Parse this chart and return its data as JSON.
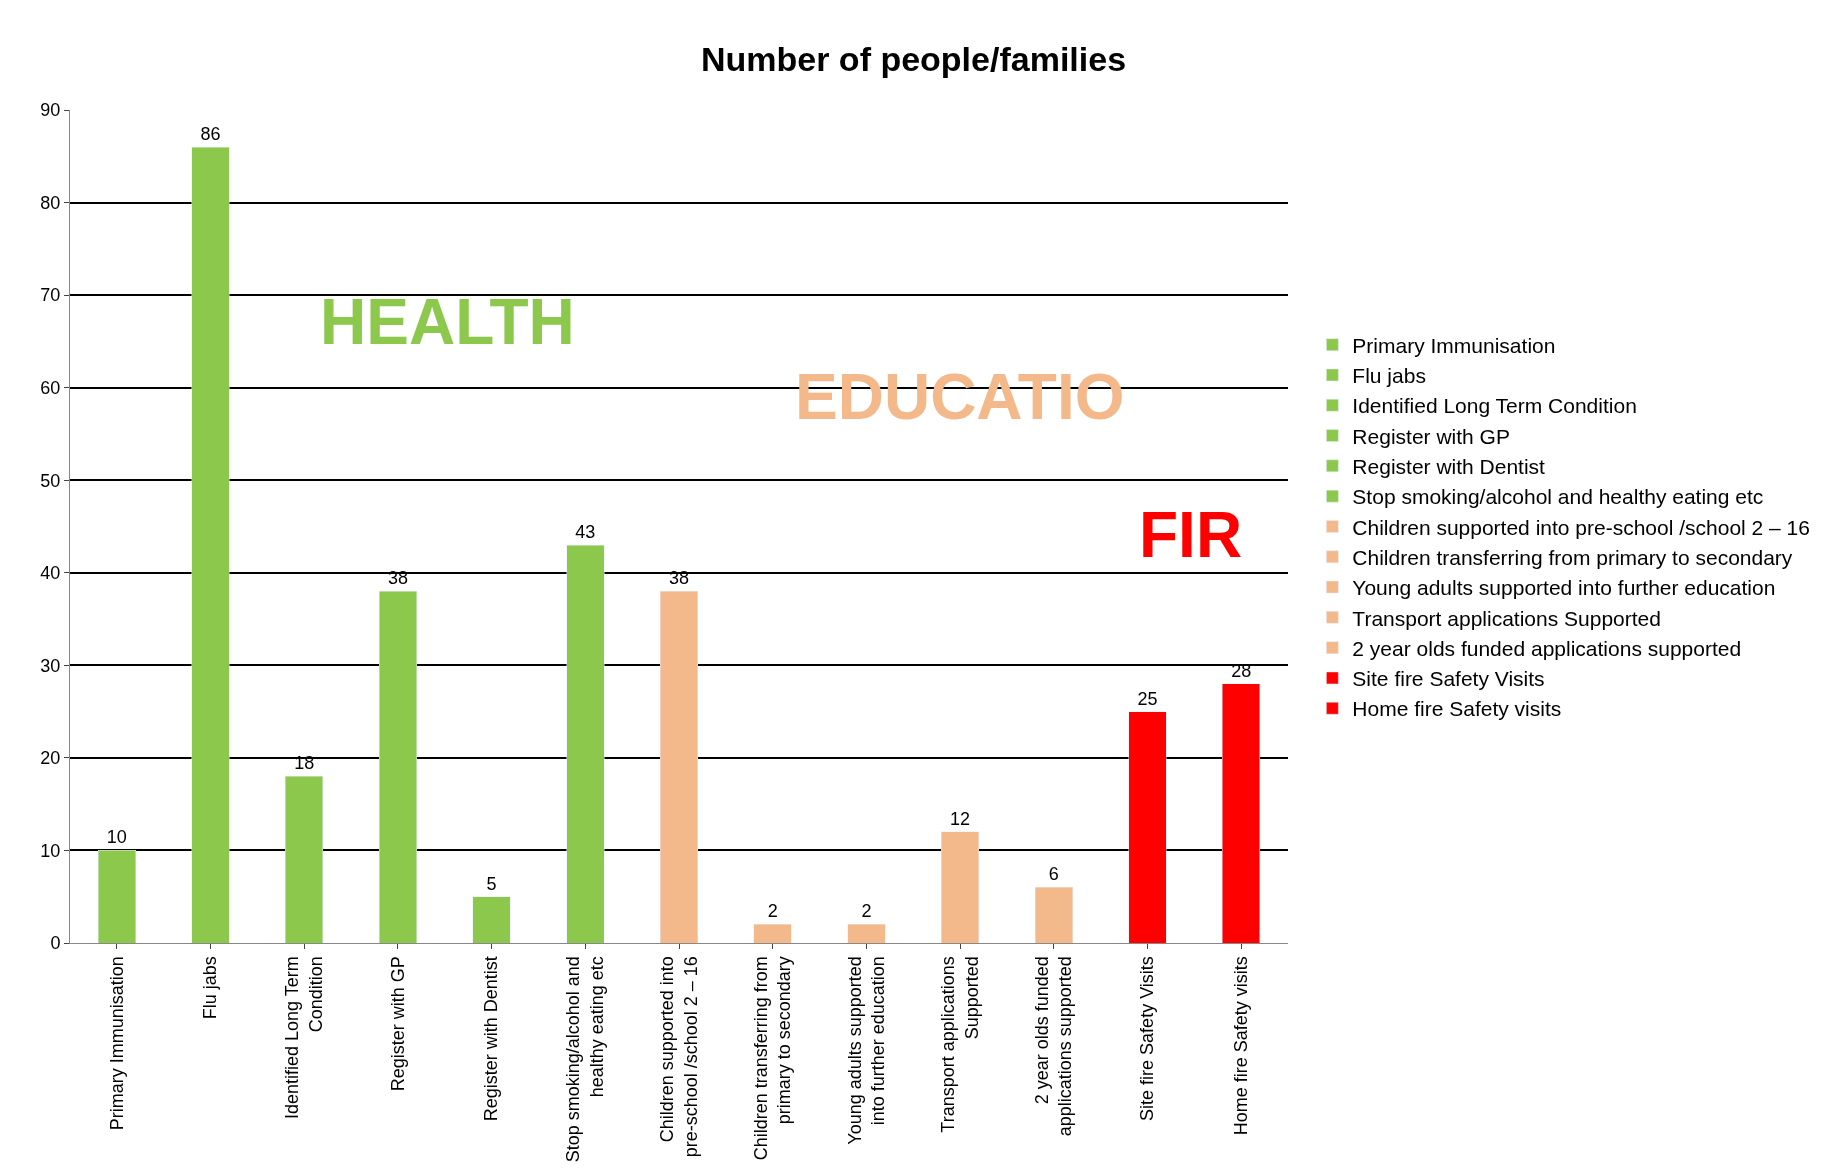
{
  "chart_data": {
    "type": "bar",
    "title": "Number of people/families",
    "stacked": true,
    "categories": [
      "Primary Immunisation",
      "Flu jabs",
      "Identified Long Term Condition",
      "Register with GP",
      "Register with Dentist",
      "Stop smoking/alcohol and healthy eating etc",
      "Children supported into pre-school /school 2 – 16",
      "Children transferring from primary to secondary",
      "Young adults supported into further education",
      "Transport applications Supported",
      "2 year olds funded applications supported",
      "Site fire Safety Visits",
      "Home fire Safety visits"
    ],
    "series": [
      {
        "name": "Primary Immunisation",
        "color": "#8cc84b",
        "values": [
          10,
          null,
          null,
          null,
          null,
          null,
          null,
          null,
          null,
          null,
          null,
          null,
          null
        ]
      },
      {
        "name": "Flu jabs",
        "color": "#8cc84b",
        "values": [
          null,
          86,
          null,
          null,
          null,
          null,
          null,
          null,
          null,
          null,
          null,
          null,
          null
        ]
      },
      {
        "name": "Identified Long Term Condition",
        "color": "#8cc84b",
        "values": [
          null,
          null,
          18,
          null,
          null,
          null,
          null,
          null,
          null,
          null,
          null,
          null,
          null
        ]
      },
      {
        "name": "Register with GP",
        "color": "#8cc84b",
        "values": [
          null,
          null,
          null,
          38,
          null,
          null,
          null,
          null,
          null,
          null,
          null,
          null,
          null
        ]
      },
      {
        "name": "Register with Dentist",
        "color": "#8cc84b",
        "values": [
          null,
          null,
          null,
          null,
          5,
          null,
          null,
          null,
          null,
          null,
          null,
          null,
          null
        ]
      },
      {
        "name": "Stop smoking/alcohol and healthy eating etc",
        "color": "#8cc84b",
        "values": [
          null,
          null,
          null,
          null,
          null,
          43,
          null,
          null,
          null,
          null,
          null,
          null,
          null
        ]
      },
      {
        "name": "Children supported into pre-school /school 2 – 16",
        "color": "#f4b98a",
        "values": [
          null,
          null,
          null,
          null,
          null,
          null,
          38,
          null,
          null,
          null,
          null,
          null,
          null
        ]
      },
      {
        "name": "Children transferring from primary to secondary",
        "color": "#f4b98a",
        "values": [
          null,
          null,
          null,
          null,
          null,
          null,
          null,
          2,
          null,
          null,
          null,
          null,
          null
        ]
      },
      {
        "name": "Young adults supported into further education",
        "color": "#f4b98a",
        "values": [
          null,
          null,
          null,
          null,
          null,
          null,
          null,
          null,
          2,
          null,
          null,
          null,
          null
        ]
      },
      {
        "name": "Transport applications Supported",
        "color": "#f4b98a",
        "values": [
          null,
          null,
          null,
          null,
          null,
          null,
          null,
          null,
          null,
          12,
          null,
          null,
          null
        ]
      },
      {
        "name": "2 year olds funded applications supported",
        "color": "#f4b98a",
        "values": [
          null,
          null,
          null,
          null,
          null,
          null,
          null,
          null,
          null,
          null,
          6,
          null,
          null
        ]
      },
      {
        "name": "Site fire Safety Visits",
        "color": "#ff0000",
        "values": [
          null,
          null,
          null,
          null,
          null,
          null,
          null,
          null,
          null,
          null,
          null,
          25,
          null
        ]
      },
      {
        "name": "Home fire Safety visits",
        "color": "#ff0000",
        "values": [
          null,
          null,
          null,
          null,
          null,
          null,
          null,
          null,
          null,
          null,
          null,
          null,
          28
        ]
      }
    ],
    "ylim": [
      0,
      90
    ],
    "yticks": [
      0,
      10,
      20,
      30,
      40,
      50,
      60,
      70,
      80,
      90
    ],
    "grid": "y",
    "legend": "right",
    "data_labels": true,
    "annotations": [
      "HEALTH",
      "EDUCATIO",
      "FIR"
    ]
  }
}
